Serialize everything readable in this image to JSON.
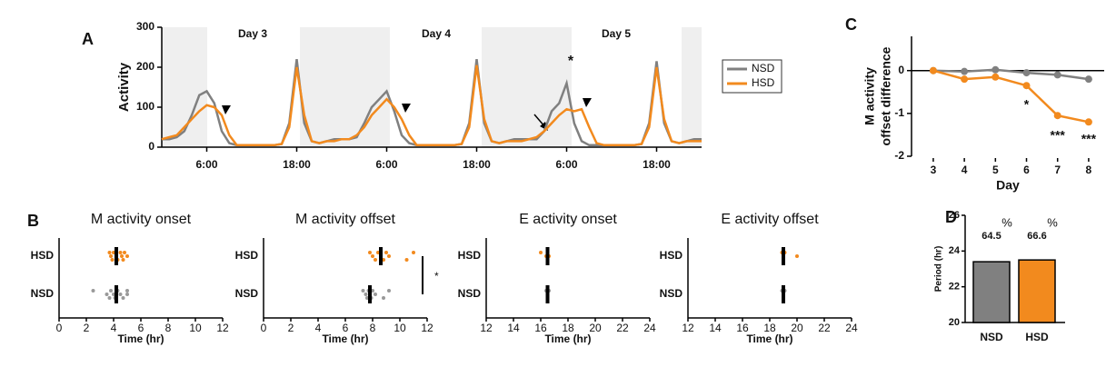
{
  "chart_data": [
    {
      "type": "line",
      "panel_label": "A",
      "ylabel": "Activity",
      "day_labels": [
        "Day 3",
        "Day 4",
        "Day 5"
      ],
      "annotations": [
        "*"
      ],
      "x": [
        0,
        1,
        2,
        3,
        4,
        5,
        6,
        7,
        8,
        9,
        10,
        11,
        12,
        13,
        14,
        15,
        16,
        17,
        18,
        19,
        20,
        21,
        22,
        23,
        24,
        25,
        26,
        27,
        28,
        29,
        30,
        31,
        32,
        33,
        34,
        35,
        36,
        37,
        38,
        39,
        40,
        41,
        42,
        43,
        44,
        45,
        46,
        47,
        48,
        49,
        50,
        51,
        52,
        53,
        54,
        55,
        56,
        57,
        58,
        59,
        60,
        61,
        62,
        63,
        64,
        65,
        66,
        67,
        68,
        69,
        70,
        71,
        72
      ],
      "xlim": [
        0,
        72
      ],
      "xticks": [
        {
          "value": 6,
          "label": "6:00"
        },
        {
          "value": 18,
          "label": "18:00"
        },
        {
          "value": 30,
          "label": "6:00"
        },
        {
          "value": 42,
          "label": "18:00"
        },
        {
          "value": 54,
          "label": "6:00"
        },
        {
          "value": 66,
          "label": "18:00"
        }
      ],
      "ylim": [
        0,
        300
      ],
      "yticks": [
        0,
        100,
        200,
        300
      ],
      "series": [
        {
          "name": "NSD",
          "color": "#808080",
          "values": [
            20,
            20,
            25,
            40,
            80,
            130,
            140,
            110,
            40,
            10,
            5,
            5,
            5,
            5,
            5,
            5,
            8,
            60,
            220,
            60,
            15,
            10,
            15,
            20,
            20,
            20,
            25,
            60,
            100,
            120,
            140,
            90,
            30,
            10,
            5,
            5,
            5,
            5,
            5,
            5,
            8,
            60,
            220,
            60,
            15,
            10,
            15,
            20,
            20,
            20,
            20,
            40,
            90,
            110,
            160,
            60,
            15,
            5,
            5,
            5,
            5,
            5,
            5,
            5,
            8,
            60,
            215,
            60,
            15,
            10,
            15,
            20,
            20
          ]
        },
        {
          "name": "HSD",
          "color": "#f28a1e",
          "values": [
            20,
            25,
            30,
            50,
            70,
            90,
            105,
            100,
            80,
            30,
            5,
            5,
            5,
            5,
            5,
            5,
            8,
            50,
            200,
            80,
            15,
            10,
            15,
            15,
            20,
            20,
            30,
            50,
            80,
            100,
            120,
            100,
            70,
            30,
            5,
            5,
            5,
            5,
            5,
            5,
            8,
            50,
            205,
            70,
            15,
            10,
            15,
            15,
            15,
            20,
            25,
            40,
            60,
            80,
            95,
            90,
            95,
            50,
            10,
            5,
            5,
            5,
            5,
            5,
            8,
            50,
            200,
            70,
            15,
            10,
            15,
            15,
            15
          ]
        }
      ]
    },
    {
      "type": "strip",
      "panel_label": "B",
      "title": "M activity onset",
      "xlabel": "Time (hr)",
      "categories": [
        "HSD",
        "NSD"
      ],
      "xlim": [
        0,
        12
      ],
      "xticks": [
        0,
        2,
        4,
        6,
        8,
        10,
        12
      ],
      "series": [
        {
          "name": "HSD",
          "color": "#f28a1e",
          "mean": 4.2,
          "values": [
            3.7,
            3.8,
            3.9,
            4.0,
            4.2,
            4.3,
            4.5,
            4.6,
            4.7,
            4.8,
            5.0
          ]
        },
        {
          "name": "NSD",
          "color": "#999999",
          "mean": 4.2,
          "values": [
            2.5,
            3.5,
            3.7,
            3.8,
            4.0,
            4.1,
            4.3,
            4.5,
            4.7,
            5.0,
            5.0
          ]
        }
      ]
    },
    {
      "type": "strip",
      "title": "M activity offset",
      "xlabel": "Time (hr)",
      "annotations": [
        "*"
      ],
      "categories": [
        "HSD",
        "NSD"
      ],
      "xlim": [
        0,
        12
      ],
      "xticks": [
        0,
        2,
        4,
        6,
        8,
        10,
        12
      ],
      "series": [
        {
          "name": "HSD",
          "color": "#f28a1e",
          "mean": 8.6,
          "values": [
            7.8,
            8.0,
            8.2,
            8.4,
            8.6,
            8.8,
            9.0,
            9.2,
            10.5,
            11.0
          ]
        },
        {
          "name": "NSD",
          "color": "#999999",
          "mean": 7.8,
          "values": [
            7.3,
            7.5,
            7.6,
            7.7,
            7.8,
            7.9,
            8.0,
            8.2,
            8.8,
            9.2
          ]
        }
      ]
    },
    {
      "type": "strip",
      "title": "E activity onset",
      "xlabel": "Time (hr)",
      "categories": [
        "HSD",
        "NSD"
      ],
      "xlim": [
        12,
        24
      ],
      "xticks": [
        12,
        14,
        16,
        18,
        20,
        22,
        24
      ],
      "series": [
        {
          "name": "HSD",
          "color": "#f28a1e",
          "mean": 16.5,
          "values": [
            16.0,
            16.4,
            16.5,
            16.5,
            16.6
          ]
        },
        {
          "name": "NSD",
          "color": "#999999",
          "mean": 16.5,
          "values": [
            16.4,
            16.5,
            16.5,
            16.6
          ]
        }
      ]
    },
    {
      "type": "strip",
      "title": "E activity offset",
      "xlabel": "Time (hr)",
      "categories": [
        "HSD",
        "NSD"
      ],
      "xlim": [
        12,
        24
      ],
      "xticks": [
        12,
        14,
        16,
        18,
        20,
        22,
        24
      ],
      "series": [
        {
          "name": "HSD",
          "color": "#f28a1e",
          "mean": 19.0,
          "values": [
            18.9,
            19.0,
            19.0,
            19.1,
            20.0
          ]
        },
        {
          "name": "NSD",
          "color": "#999999",
          "mean": 19.0,
          "values": [
            18.9,
            19.0,
            19.0,
            19.1
          ]
        }
      ]
    },
    {
      "type": "dotline",
      "panel_label": "C",
      "ylabel": [
        "M activity",
        "offset difference"
      ],
      "xlabel": "Day",
      "annotations": [
        "*",
        "***",
        "***"
      ],
      "x": [
        3,
        4,
        5,
        6,
        7,
        8
      ],
      "xlim": [
        2.3,
        8.5
      ],
      "xticks": [
        3,
        4,
        5,
        6,
        7,
        8
      ],
      "ylim": [
        -2,
        0.8
      ],
      "yticks": [
        -2,
        -1,
        0
      ],
      "series": [
        {
          "name": "NSD",
          "color": "#808080",
          "values": [
            0,
            -0.02,
            0.02,
            -0.05,
            -0.1,
            -0.2
          ]
        },
        {
          "name": "HSD",
          "color": "#f28a1e",
          "values": [
            0,
            -0.2,
            -0.15,
            -0.35,
            -1.05,
            -1.2
          ]
        }
      ]
    },
    {
      "type": "bar",
      "panel_label": "D",
      "ylabel": "Period (hr)",
      "annotations": [
        "64.5",
        "%",
        "66.6",
        "%"
      ],
      "categories": [
        "NSD",
        "HSD"
      ],
      "values": [
        23.4,
        23.5
      ],
      "colors": [
        "#808080",
        "#f28a1e"
      ],
      "ylim": [
        20,
        26
      ],
      "yticks": [
        20,
        22,
        24,
        26
      ]
    }
  ]
}
